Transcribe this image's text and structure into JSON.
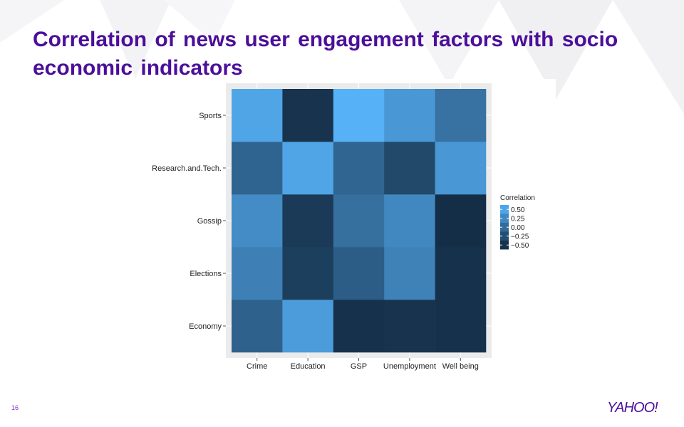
{
  "slide": {
    "title": "Correlation of news user engagement factors with socio economic indicators",
    "page_number": "16",
    "logo_text": "YAHOO!"
  },
  "colors": {
    "title": "#4b0f9a",
    "panel_bg": "#ebebeb",
    "low": "#132b43",
    "high": "#56b1f7"
  },
  "chart_data": {
    "type": "heatmap",
    "title": "",
    "xlabel": "",
    "ylabel": "",
    "x": [
      "Crime",
      "Education",
      "GSP",
      "Unemployment",
      "Well being"
    ],
    "y": [
      "Economy",
      "Elections",
      "Gossip",
      "Research.and.Tech.",
      "Sports"
    ],
    "values": [
      [
        -0.08,
        0.42,
        -0.5,
        -0.48,
        -0.5
      ],
      [
        0.18,
        -0.38,
        -0.12,
        0.2,
        -0.5
      ],
      [
        0.28,
        -0.42,
        0.04,
        0.25,
        -0.52
      ],
      [
        -0.06,
        0.5,
        -0.05,
        -0.3,
        0.38
      ],
      [
        0.5,
        -0.48,
        0.6,
        0.38,
        0.06
      ]
    ],
    "legend": {
      "title": "Correlation",
      "breaks": [
        "0.50",
        "0.25",
        "0.00",
        "−0.25",
        "−0.50"
      ],
      "break_values": [
        0.5,
        0.25,
        0.0,
        -0.25,
        -0.5
      ],
      "placement": "right"
    },
    "limits": [
      -0.55,
      0.6
    ],
    "grid": true
  }
}
